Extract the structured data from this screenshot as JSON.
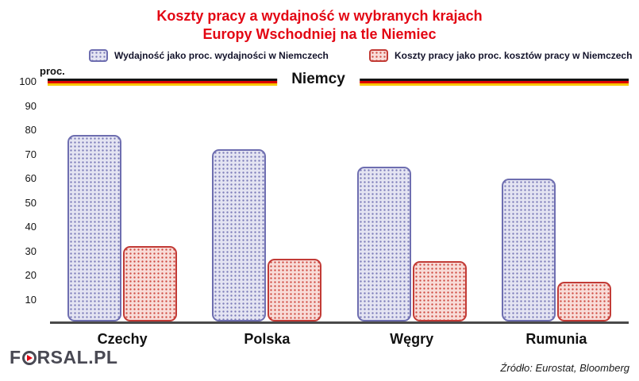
{
  "title": {
    "line1": "Koszty pracy a wydajność w wybranych krajach",
    "line2": "Europy Wschodniej na tle Niemiec",
    "color": "#e30613"
  },
  "legend": {
    "items": [
      {
        "label": "Wydajność jako proc. wydajności w Niemczech"
      },
      {
        "label": "Koszty pracy jako proc. kosztów pracy w Niemczech"
      }
    ]
  },
  "chart_data": {
    "type": "bar",
    "categories": [
      "Czechy",
      "Polska",
      "Węgry",
      "Rumunia"
    ],
    "series": [
      {
        "name": "Wydajność jako proc. wydajności w Niemczech",
        "values": [
          77,
          71,
          64,
          59
        ],
        "border_color": "#6e6eb0",
        "fill_color": "#e4e4f2",
        "dot_color": "#7b7bb8"
      },
      {
        "name": "Koszty pracy jako proc. kosztów pracy w Niemczech",
        "values": [
          31,
          26,
          25,
          16.5
        ],
        "border_color": "#c23b36",
        "fill_color": "#f8dcd8",
        "dot_color": "#cf4a42"
      }
    ],
    "ylabel": "proc.",
    "ylim": [
      0,
      100
    ],
    "yticks": [
      10,
      20,
      30,
      40,
      50,
      60,
      70,
      80,
      90,
      100
    ],
    "grid": false,
    "legend_position": "top",
    "reference_line": {
      "value": 100,
      "label": "Niemcy",
      "style": "german-flag",
      "colors": [
        "#141414",
        "#dd0000",
        "#f7c600"
      ]
    }
  },
  "footer": {
    "logo": {
      "part1": "F",
      "part2": "RSAL",
      "part3": ".PL"
    },
    "source": "Źródło: Eurostat, Bloomberg"
  }
}
